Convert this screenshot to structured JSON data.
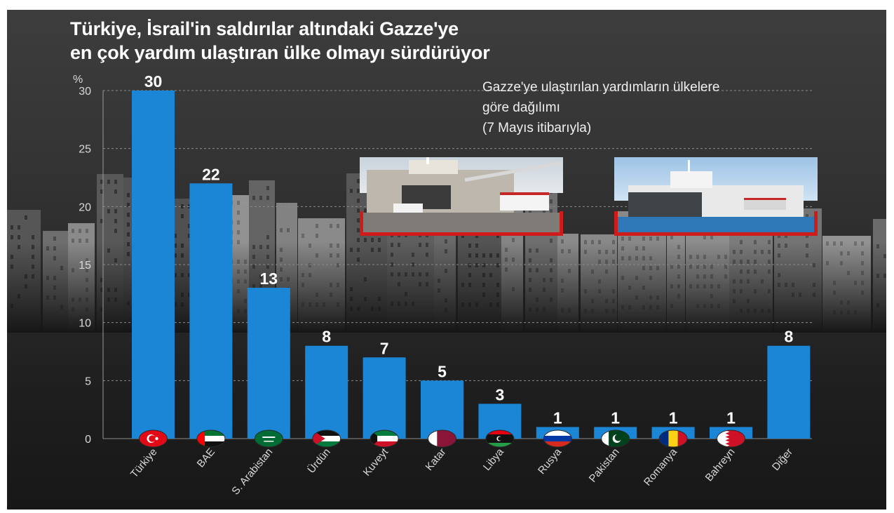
{
  "title": {
    "line1": "Türkiye, İsrail'in saldırılar altındaki Gazze'ye",
    "line2": "en çok yardım ulaştıran ülke olmayı sürdürüyor"
  },
  "subtitle": {
    "line1": "Gazze'ye ulaştırılan yardımların ülkelere",
    "line2": "göre dağılımı",
    "line3": "(7 Mayıs itibarıyla)"
  },
  "colors": {
    "bar": "#1b86d6",
    "accent_red": "#d01b1b",
    "text": "#ffffff",
    "axis_text": "#d9d9d9"
  },
  "chart_data": {
    "type": "bar",
    "title": "Türkiye, İsrail'in saldırılar altındaki Gazze'ye en çok yardım ulaştıran ülke olmayı sürdürüyor",
    "subtitle": "Gazze'ye ulaştırılan yardımların ülkelere göre dağılımı (7 Mayıs itibarıyla)",
    "unit_label": "%",
    "ylim": [
      0,
      30
    ],
    "yticks": [
      0,
      5,
      10,
      15,
      20,
      25,
      30
    ],
    "grid": true,
    "categories": [
      "Türkiye",
      "BAE",
      "S. Arabistan",
      "Ürdün",
      "Kuveyt",
      "Katar",
      "Libya",
      "Rusya",
      "Pakistan",
      "Romanya",
      "Bahreyn",
      "Diğer"
    ],
    "values": [
      30,
      22,
      13,
      8,
      7,
      5,
      3,
      1,
      1,
      1,
      1,
      8
    ],
    "flags": [
      "turkey-flag-icon",
      "uae-flag-icon",
      "saudi-arabia-flag-icon",
      "jordan-flag-icon",
      "kuwait-flag-icon",
      "qatar-flag-icon",
      "libya-flag-icon",
      "russia-flag-icon",
      "pakistan-flag-icon",
      "romania-flag-icon",
      "bahrain-flag-icon",
      ""
    ]
  }
}
